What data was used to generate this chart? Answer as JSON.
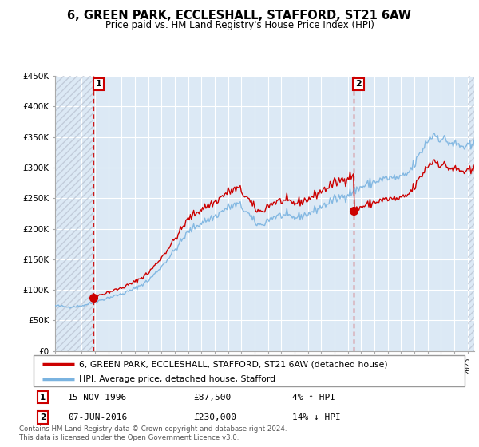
{
  "title": "6, GREEN PARK, ECCLESHALL, STAFFORD, ST21 6AW",
  "subtitle": "Price paid vs. HM Land Registry's House Price Index (HPI)",
  "legend_line1": "6, GREEN PARK, ECCLESHALL, STAFFORD, ST21 6AW (detached house)",
  "legend_line2": "HPI: Average price, detached house, Stafford",
  "transaction1_date": "15-NOV-1996",
  "transaction1_price": 87500,
  "transaction1_hpi": "4% ↑ HPI",
  "transaction1_label": "1",
  "transaction2_date": "07-JUN-2016",
  "transaction2_price": 230000,
  "transaction2_hpi": "14% ↓ HPI",
  "transaction2_label": "2",
  "footnote": "Contains HM Land Registry data © Crown copyright and database right 2024.\nThis data is licensed under the Open Government Licence v3.0.",
  "hpi_color": "#7ab3e0",
  "price_color": "#cc0000",
  "dot_color": "#cc0000",
  "vline_color": "#cc0000",
  "chart_bg": "#dce9f5",
  "ylim": [
    0,
    450000
  ],
  "yticks": [
    0,
    50000,
    100000,
    150000,
    200000,
    250000,
    300000,
    350000,
    400000,
    450000
  ],
  "t1_x": 1996.875,
  "t1_y": 87500,
  "t2_x": 2016.417,
  "t2_y": 230000,
  "xmin": 1994,
  "xmax": 2025.5
}
